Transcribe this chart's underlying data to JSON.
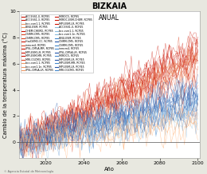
{
  "title": "BIZKAIA",
  "subtitle": "ANUAL",
  "xlabel": "Año",
  "ylabel": "Cambio de la temperatura máxima (°C)",
  "xlim": [
    2006,
    2101
  ],
  "ylim": [
    -1.2,
    10
  ],
  "yticks": [
    0,
    2,
    4,
    6,
    8,
    10
  ],
  "xticks": [
    2020,
    2040,
    2060,
    2080,
    2100
  ],
  "year_start": 2006,
  "year_end": 2100,
  "background_color": "#e8e8e0",
  "plot_bg": "#ffffff",
  "red_color_dark": "#cc1100",
  "red_color_mid": "#dd4422",
  "red_color_light": "#ee9966",
  "blue_color_dark": "#2255aa",
  "blue_color_mid": "#4488cc",
  "blue_color_light": "#88bbdd",
  "title_fontsize": 7,
  "subtitle_fontsize": 5.5,
  "label_fontsize": 4.8,
  "tick_fontsize": 4.5,
  "legend_entries_col1": [
    "ACCESS1-0, RCP85",
    "ACCESS1-3, RCP85",
    "bcc-csm1-1, RCP85",
    "BNU-ESM, RCP85",
    "CHEM-CHEM2, RCP85",
    "CNRM-CM5, RCP85",
    "CNRM-CM5, RCP85",
    "HadGEM2-CC, RCP85",
    "inmcm4, RCP85",
    "IPSL-CM5A-MR, RCP85",
    "MPI-ESM-LR, RCP85",
    "MPI-ESM-MR, RCP85",
    "MRI-CGCM3, RCP85",
    "bcc-csm1-1, RCP85",
    "bcc-csm1-1n, RCP85",
    "IPSL-CM5A-LR, RCP85"
  ],
  "legend_entries_col2": [
    "MIROC5, RCP85",
    "MIROC-ESM-CHEM, RCP85",
    "MPI-ESM-LR, RCP85",
    "ACCESS1-0, RCP45",
    "bcc-csm1-1, RCP45",
    "bcc-csm1-1n, RCP45",
    "BNU-ESM, RCP45",
    "CNRM-CM5, RCP45",
    "CNRM-CM5, RCP45",
    "inmcm4, RCP45",
    "IPSL-CM5A-LR, RCP45",
    "MIROC5, RCP45",
    "MPI-ESM-LR, RCP45",
    "MPI-ESM-MR, RCP45",
    "MPI-ESM-LR, RCP45",
    "MRI-CGCM3, RCP45"
  ]
}
